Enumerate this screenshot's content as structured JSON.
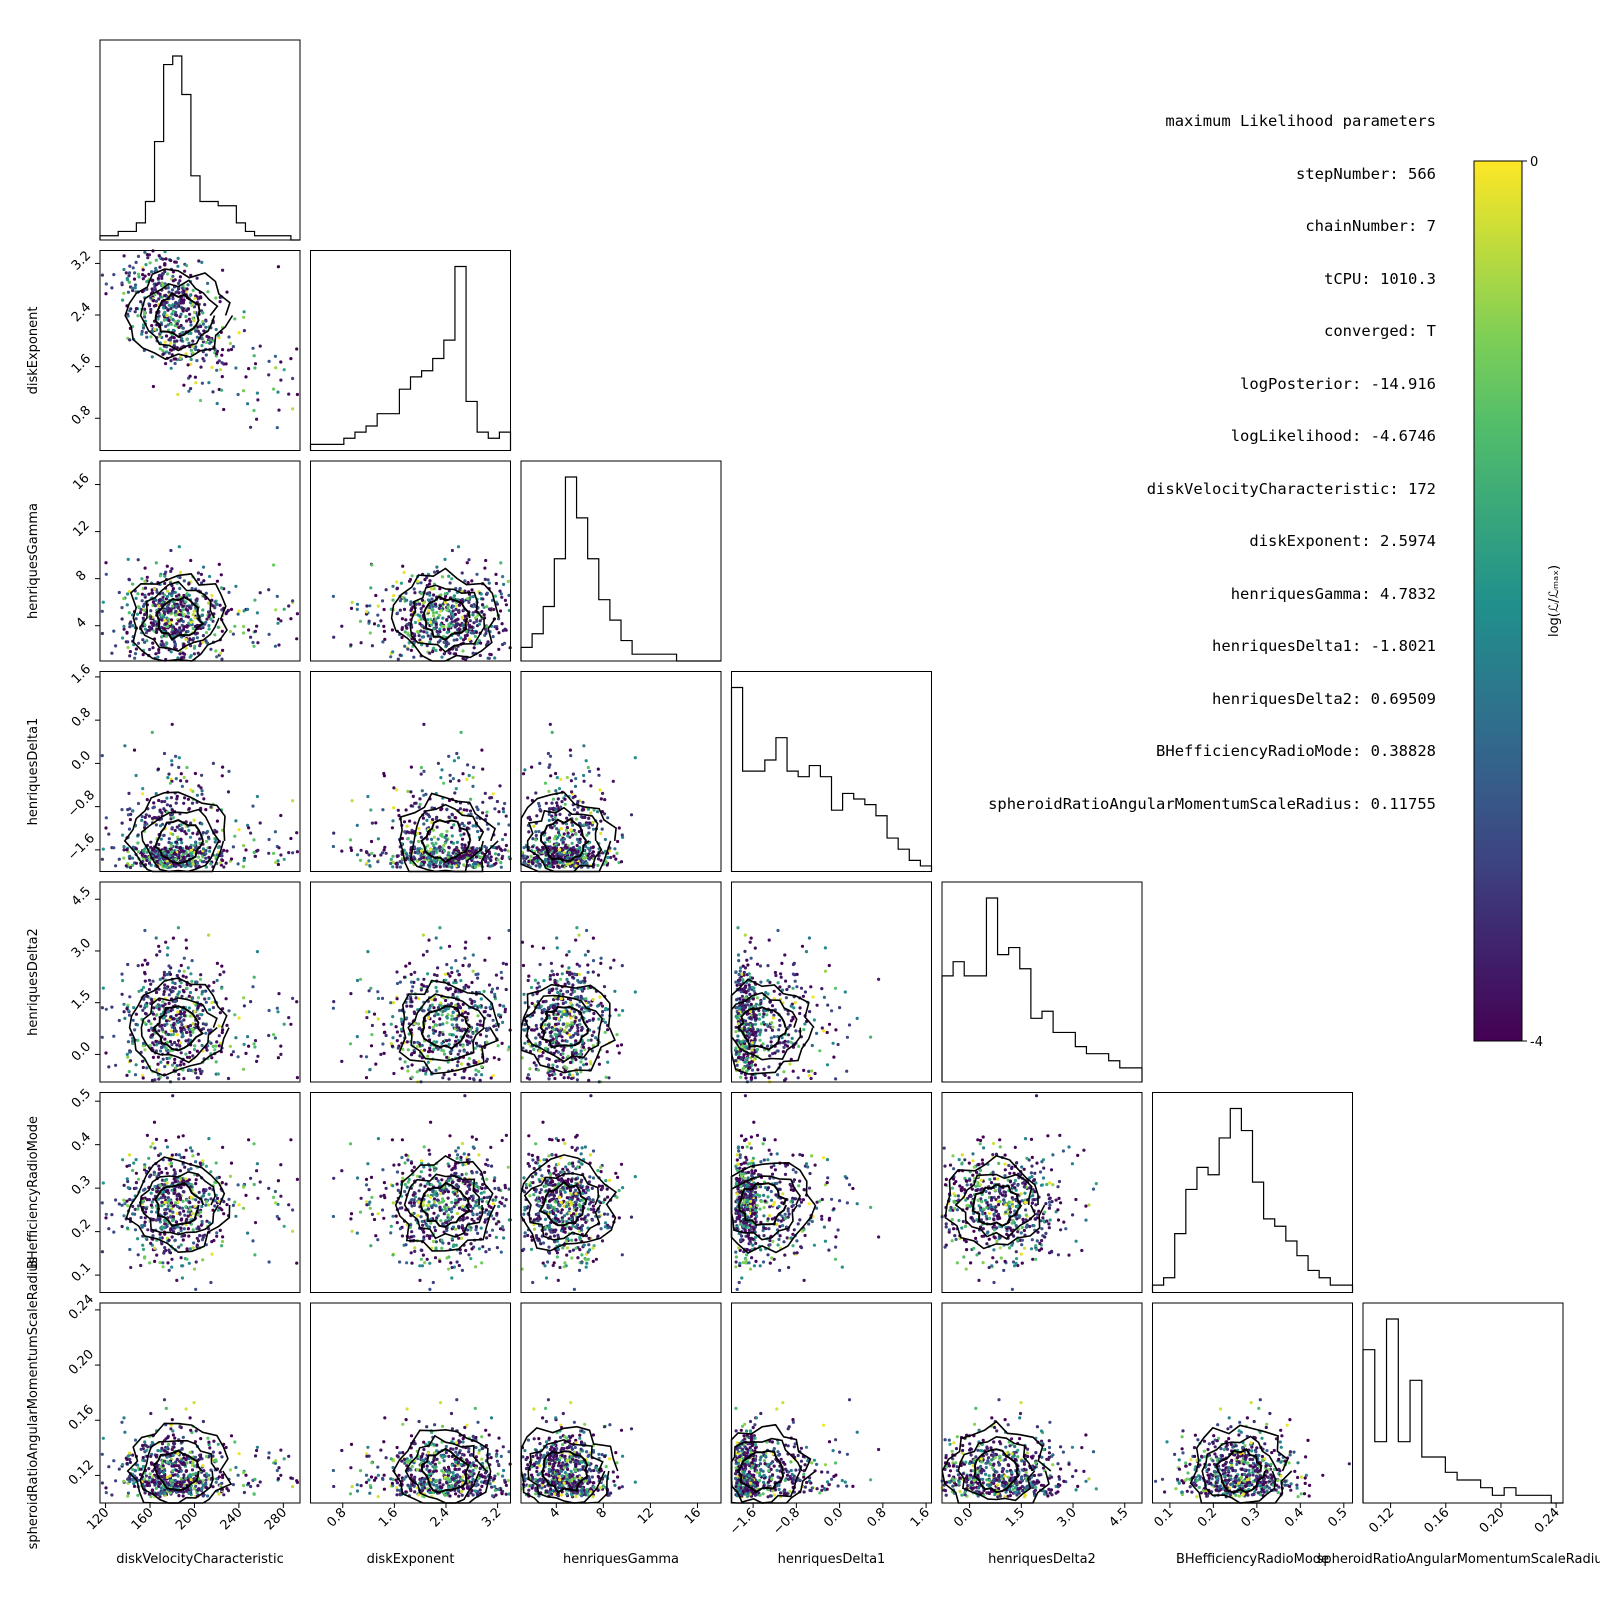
{
  "params": {
    "title": "maximum Likelihood parameters",
    "lines": [
      "stepNumber: 566",
      "chainNumber: 7",
      "tCPU: 1010.3",
      "converged: T",
      "logPosterior: -14.916",
      "logLikelihood: -4.6746",
      "diskVelocityCharacteristic: 172",
      "diskExponent: 2.5974",
      "henriquesGamma: 4.7832",
      "henriquesDelta1: -1.8021",
      "henriquesDelta2: 0.69509",
      "BHefficiencyRadioMode: 0.38828",
      "spheroidRatioAngularMomentumScaleRadius: 0.11755"
    ]
  },
  "chart_data": {
    "type": "scatter",
    "subtype": "corner",
    "parameters": [
      {
        "name": "diskVelocityCharacteristic",
        "range": [
          115,
          295
        ],
        "ticks": [
          120,
          160,
          200,
          240,
          280
        ],
        "tick_labels": [
          "120",
          "160",
          "200",
          "240",
          "280"
        ],
        "peak": 180
      },
      {
        "name": "diskExponent",
        "range": [
          0.3,
          3.4
        ],
        "ticks": [
          0.8,
          1.6,
          2.4,
          3.2
        ],
        "tick_labels": [
          "0.8",
          "1.6",
          "2.4",
          "3.2"
        ],
        "peak": 2.5
      },
      {
        "name": "henriquesGamma",
        "range": [
          1,
          18
        ],
        "ticks": [
          4,
          8,
          12,
          16
        ],
        "tick_labels": [
          "4",
          "8",
          "12",
          "16"
        ],
        "peak": 4.8
      },
      {
        "name": "henriquesDelta1",
        "range": [
          -2,
          1.7
        ],
        "ticks": [
          -1.6,
          -0.8,
          0.0,
          0.8,
          1.6
        ],
        "tick_labels": [
          "−1.6",
          "−0.8",
          "0.0",
          "0.8",
          "1.6"
        ],
        "peak": -1.8
      },
      {
        "name": "henriquesDelta2",
        "range": [
          -0.8,
          5.0
        ],
        "ticks": [
          0.0,
          1.5,
          3.0,
          4.5
        ],
        "tick_labels": [
          "0.0",
          "1.5",
          "3.0",
          "4.5"
        ],
        "peak": 0.7
      },
      {
        "name": "BHefficiencyRadioMode",
        "range": [
          0.06,
          0.52
        ],
        "ticks": [
          0.1,
          0.2,
          0.3,
          0.4,
          0.5
        ],
        "tick_labels": [
          "0.1",
          "0.2",
          "0.3",
          "0.4",
          "0.5"
        ],
        "peak": 0.26
      },
      {
        "name": "spheroidRatioAngularMomentumScaleRadius",
        "range": [
          0.1,
          0.245
        ],
        "ticks": [
          0.12,
          0.16,
          0.2,
          0.24
        ],
        "tick_labels": [
          "0.12",
          "0.16",
          "0.20",
          "0.24"
        ],
        "peak": 0.12
      }
    ],
    "histograms": [
      [
        1,
        1,
        2,
        2,
        4,
        9,
        23,
        41,
        43,
        34,
        15,
        9,
        9,
        8,
        8,
        4,
        2,
        1,
        1,
        1,
        1,
        0
      ],
      [
        1,
        1,
        1,
        2,
        3,
        4,
        6,
        6,
        10,
        12,
        13,
        15,
        18,
        30,
        8,
        3,
        2,
        3
      ],
      [
        2,
        4,
        8,
        15,
        27,
        21,
        15,
        9,
        6,
        3,
        1,
        1,
        1,
        1,
        0,
        0,
        0,
        0
      ],
      [
        33,
        18,
        18,
        20,
        24,
        18,
        17,
        19,
        17,
        11,
        14,
        13,
        12,
        10,
        6,
        4,
        2,
        1
      ],
      [
        15,
        17,
        15,
        15,
        26,
        18,
        19,
        16,
        9,
        10,
        7,
        7,
        5,
        4,
        4,
        3,
        2,
        2
      ],
      [
        1,
        2,
        8,
        14,
        17,
        16,
        21,
        25,
        22,
        15,
        10,
        9,
        7,
        5,
        3,
        2,
        1,
        1
      ],
      [
        20,
        8,
        24,
        8,
        16,
        6,
        6,
        4,
        3,
        3,
        2,
        1,
        2,
        1,
        1,
        1,
        0
      ]
    ],
    "colorbar": {
      "label": "log(ℒ/ℒₘₐₓ)",
      "ticks": [
        0,
        -4
      ],
      "tick_labels": [
        "0",
        "-4"
      ],
      "colormap": "viridis",
      "range": [
        -4,
        0
      ]
    },
    "grid": false,
    "colors": {
      "contour": "#000000",
      "hist": "#000000"
    }
  }
}
